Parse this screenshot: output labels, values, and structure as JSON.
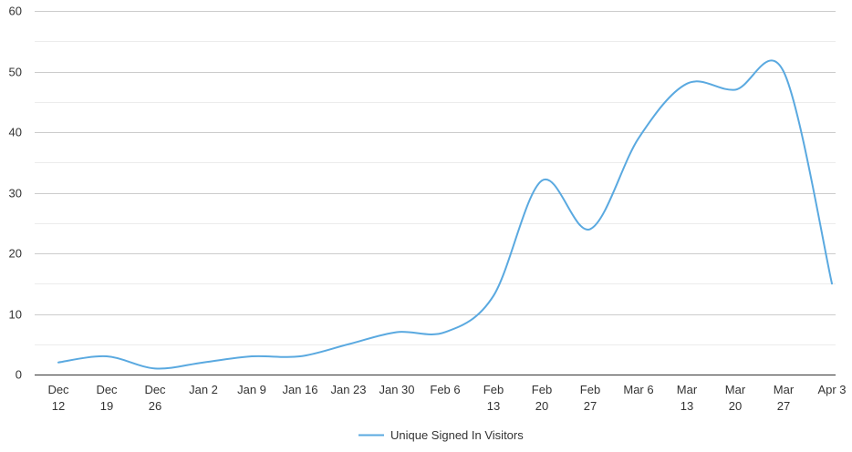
{
  "chart_data": {
    "type": "line",
    "title": "",
    "xlabel": "",
    "ylabel": "",
    "categories": [
      [
        "Dec",
        "12"
      ],
      [
        "Dec",
        "19"
      ],
      [
        "Dec",
        "26"
      ],
      [
        "Jan 2"
      ],
      [
        "Jan 9"
      ],
      [
        "Jan 16"
      ],
      [
        "Jan 23"
      ],
      [
        "Jan 30"
      ],
      [
        "Feb 6"
      ],
      [
        "Feb",
        "13"
      ],
      [
        "Feb",
        "20"
      ],
      [
        "Feb",
        "27"
      ],
      [
        "Mar 6"
      ],
      [
        "Mar",
        "13"
      ],
      [
        "Mar",
        "20"
      ],
      [
        "Mar",
        "27"
      ],
      [
        "Apr 3"
      ]
    ],
    "series": [
      {
        "name": "Unique Signed In Visitors",
        "color": "#5aa9e0",
        "values": [
          2,
          3,
          1,
          2,
          3,
          3,
          5,
          7,
          7,
          13,
          32,
          24,
          39,
          48,
          47,
          50,
          15
        ]
      }
    ],
    "ylim": [
      0,
      60
    ],
    "yticks": [
      0,
      10,
      20,
      30,
      40,
      50,
      60
    ],
    "grid": true,
    "minor_grid": true,
    "legend": "bottom",
    "smooth": true
  }
}
